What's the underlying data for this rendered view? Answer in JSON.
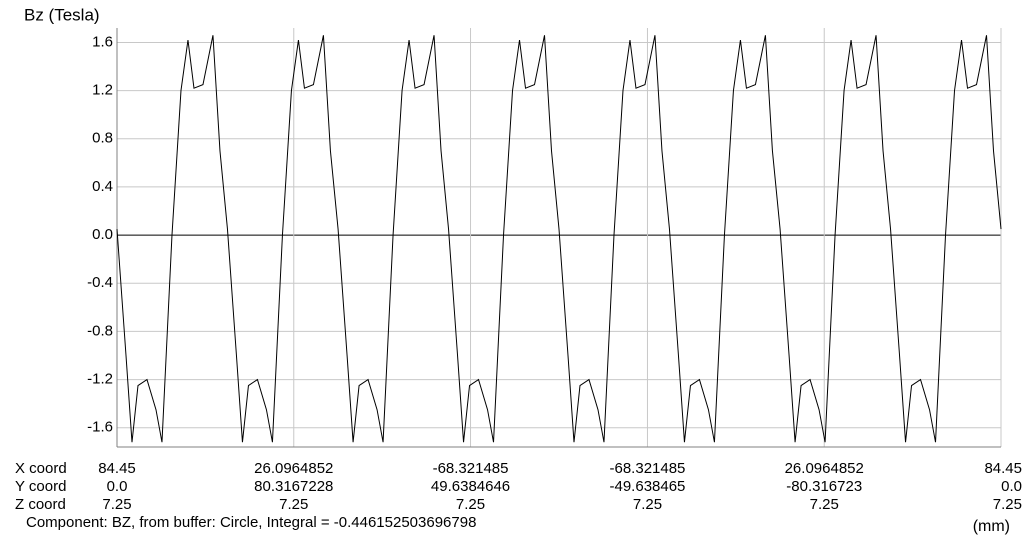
{
  "chart_data": {
    "type": "line",
    "ylabel": "Bz (Tesla)",
    "x_unit": "(mm)",
    "footer": "Component: BZ, from buffer: Circle, Integral = -0.446152503696798",
    "color": "#000000",
    "grid": true,
    "xlim": [
      0,
      530.6
    ],
    "ylim": [
      -1.76,
      1.72
    ],
    "yticks": [
      -1.6,
      -1.2,
      -0.8,
      -0.4,
      {
        "value": 0,
        "label": "0.0"
      },
      0.4,
      0.8,
      1.2,
      1.6
    ],
    "x_label_rows": [
      "X coord",
      "Y coord",
      "Z coord"
    ],
    "x_label_columns": [
      {
        "position": 0,
        "labels": [
          "84.45",
          "0.0",
          "7.25"
        ]
      },
      {
        "position": 106.1,
        "labels": [
          "26.0964852",
          "80.3167228",
          "7.25"
        ]
      },
      {
        "position": 212.2,
        "labels": [
          "-68.321485",
          "49.6384646",
          "7.25"
        ]
      },
      {
        "position": 318.4,
        "labels": [
          "-68.321485",
          "-49.638465",
          "7.25"
        ]
      },
      {
        "position": 424.5,
        "labels": [
          "26.0964852",
          "-80.316723",
          "7.25"
        ]
      },
      {
        "position": 530.6,
        "labels": [
          "84.45",
          "0.0",
          "7.25"
        ]
      }
    ],
    "x": [
      0,
      5.4,
      9,
      12.6,
      18,
      23.4,
      27,
      33,
      38.4,
      42.6,
      46.2,
      51.6,
      57.6,
      61.8,
      66.3,
      71.7,
      75.3,
      78.9,
      84.3,
      89.7,
      93.3,
      99.3,
      104.7,
      108.9,
      112.5,
      117.9,
      123.9,
      128.1,
      132.7,
      138.1,
      141.7,
      145.3,
      150.7,
      156.1,
      159.7,
      165.7,
      171.1,
      175.3,
      178.9,
      184.3,
      190.3,
      194.5,
      199,
      204.4,
      208,
      211.6,
      217,
      222.4,
      226,
      232,
      237.4,
      241.6,
      245.2,
      250.6,
      256.6,
      260.8,
      265.3,
      270.7,
      274.3,
      277.9,
      283.3,
      288.7,
      292.3,
      298.3,
      303.7,
      307.9,
      311.5,
      316.9,
      322.9,
      327.1,
      331.6,
      337,
      340.6,
      344.2,
      349.6,
      355,
      358.6,
      364.6,
      370,
      374.2,
      377.8,
      383.2,
      389.2,
      393.4,
      398,
      403.4,
      407,
      410.6,
      416,
      421.4,
      425,
      431,
      436.4,
      440.6,
      444.2,
      449.6,
      455.6,
      459.8,
      464.3,
      469.7,
      473.3,
      476.9,
      482.3,
      487.7,
      491.3,
      497.3,
      502.7,
      506.9,
      510.5,
      515.9,
      521.9,
      526.1,
      530.6
    ],
    "values": [
      0.05,
      -1.0,
      -1.72,
      -1.25,
      -1.2,
      -1.45,
      -1.72,
      0.0,
      1.2,
      1.62,
      1.22,
      1.25,
      1.66,
      0.7,
      0.05,
      -1.0,
      -1.72,
      -1.25,
      -1.2,
      -1.45,
      -1.72,
      0.0,
      1.2,
      1.62,
      1.22,
      1.25,
      1.66,
      0.7,
      0.05,
      -1.0,
      -1.72,
      -1.25,
      -1.2,
      -1.45,
      -1.72,
      0.0,
      1.2,
      1.62,
      1.22,
      1.25,
      1.66,
      0.7,
      0.05,
      -1.0,
      -1.72,
      -1.25,
      -1.2,
      -1.45,
      -1.72,
      0.0,
      1.2,
      1.62,
      1.22,
      1.25,
      1.66,
      0.7,
      0.05,
      -1.0,
      -1.72,
      -1.25,
      -1.2,
      -1.45,
      -1.72,
      0.0,
      1.2,
      1.62,
      1.22,
      1.25,
      1.66,
      0.7,
      0.05,
      -1.0,
      -1.72,
      -1.25,
      -1.2,
      -1.45,
      -1.72,
      0.0,
      1.2,
      1.62,
      1.22,
      1.25,
      1.66,
      0.7,
      0.05,
      -1.0,
      -1.72,
      -1.25,
      -1.2,
      -1.45,
      -1.72,
      0.0,
      1.2,
      1.62,
      1.22,
      1.25,
      1.66,
      0.7,
      0.05,
      -1.0,
      -1.72,
      -1.25,
      -1.2,
      -1.45,
      -1.72,
      0.0,
      1.2,
      1.62,
      1.22,
      1.25,
      1.66,
      0.7,
      0.05
    ]
  }
}
